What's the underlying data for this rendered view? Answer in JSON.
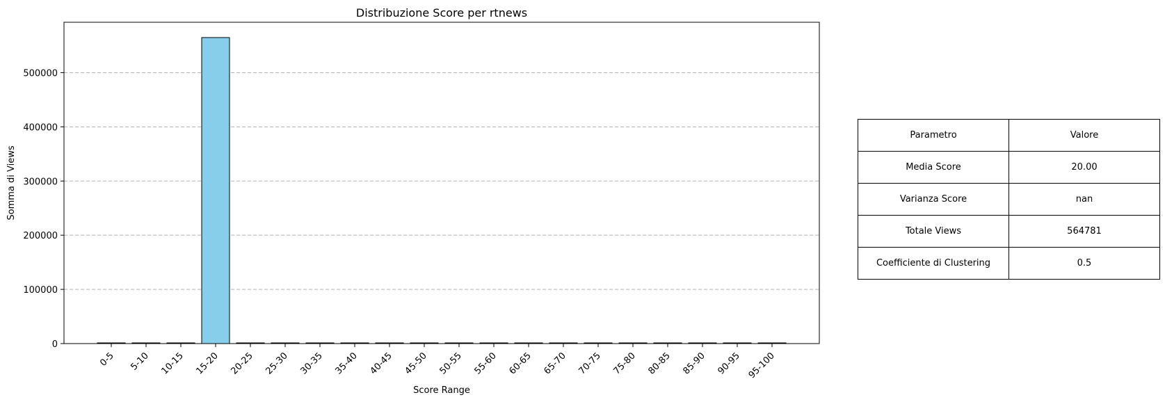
{
  "chart_data": {
    "type": "bar",
    "title": "Distribuzione Score per rtnews",
    "xlabel": "Score Range",
    "ylabel": "Somma di Views",
    "categories": [
      "0-5",
      "5-10",
      "10-15",
      "15-20",
      "20-25",
      "25-30",
      "30-35",
      "35-40",
      "40-45",
      "45-50",
      "50-55",
      "55-60",
      "60-65",
      "65-70",
      "70-75",
      "75-80",
      "80-85",
      "85-90",
      "90-95",
      "95-100"
    ],
    "values": [
      0,
      0,
      0,
      564781,
      0,
      0,
      0,
      0,
      0,
      0,
      0,
      0,
      0,
      0,
      0,
      0,
      0,
      0,
      0,
      0
    ],
    "ylim": [
      0,
      593000
    ],
    "yticks": [
      0,
      100000,
      200000,
      300000,
      400000,
      500000
    ],
    "ytick_labels": [
      "0",
      "100000",
      "200000",
      "300000",
      "400000",
      "500000"
    ],
    "grid": "y-dashed",
    "bar_color": "#87CEEB",
    "edge_color": "#000000"
  },
  "table": {
    "header": [
      "Parametro",
      "Valore"
    ],
    "rows": [
      [
        "Media Score",
        "20.00"
      ],
      [
        "Varianza Score",
        "nan"
      ],
      [
        "Totale Views",
        "564781"
      ],
      [
        "Coefficiente di Clustering",
        "0.5"
      ]
    ]
  }
}
